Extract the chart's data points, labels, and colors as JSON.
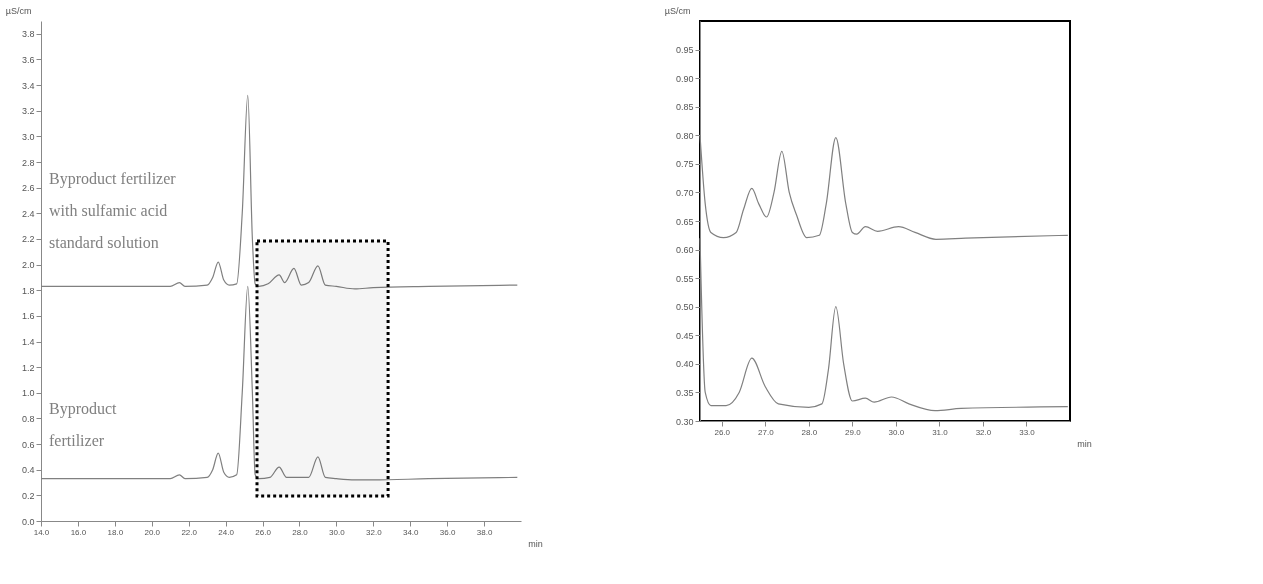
{
  "chart_data": [
    {
      "type": "line",
      "xlabel": "min",
      "ylabel": "µS/cm",
      "xlim": [
        14,
        40
      ],
      "ylim": [
        0,
        3.9
      ],
      "xticks": [
        {
          "value": 14,
          "label": "14.0"
        },
        {
          "value": 16,
          "label": "16.0"
        },
        {
          "value": 18,
          "label": "18.0"
        },
        {
          "value": 20,
          "label": "20.0"
        },
        {
          "value": 22,
          "label": "22.0"
        },
        {
          "value": 24,
          "label": "24.0"
        },
        {
          "value": 26,
          "label": "26.0"
        },
        {
          "value": 28,
          "label": "28.0"
        },
        {
          "value": 30,
          "label": "30.0"
        },
        {
          "value": 32,
          "label": "32.0"
        },
        {
          "value": 34,
          "label": "34.0"
        },
        {
          "value": 36,
          "label": "36.0"
        },
        {
          "value": 38,
          "label": "38.0"
        }
      ],
      "yticks": [
        {
          "value": 0,
          "label": "0.0"
        },
        0.2,
        0.4,
        0.6,
        0.8,
        {
          "value": 1,
          "label": "1.0"
        },
        1.2,
        1.4,
        1.6,
        1.8,
        {
          "value": 2,
          "label": "2.0"
        },
        2.2,
        2.4,
        2.6,
        2.8,
        {
          "value": 3,
          "label": "3.0"
        },
        3.2,
        3.4,
        3.6,
        3.8
      ],
      "grid": false,
      "legend": false,
      "marker": "none",
      "line_style": "solid",
      "bands": [
        {
          "axis": "x",
          "from": 25.7,
          "to": 32.8,
          "color": "#000000"
        }
      ],
      "series": [
        {
          "name": "Byproduct fertilizer with sulfamic acid standard solution",
          "color": "#808080",
          "x": [
            14,
            18,
            21,
            21.5,
            21.8,
            23.0,
            23.3,
            23.6,
            23.9,
            24.2,
            24.6,
            24.9,
            25.2,
            25.45,
            25.6,
            25.8,
            26.3,
            26.9,
            27.2,
            27.7,
            28.1,
            28.5,
            29.0,
            29.4,
            30.0,
            31.0,
            32.0,
            35,
            39.8
          ],
          "values": [
            1.83,
            1.83,
            1.83,
            1.86,
            1.83,
            1.84,
            1.9,
            2.02,
            1.88,
            1.84,
            1.85,
            2.4,
            3.32,
            2.2,
            1.85,
            1.83,
            1.85,
            1.92,
            1.86,
            1.97,
            1.84,
            1.86,
            1.99,
            1.84,
            1.83,
            1.81,
            1.82,
            1.83,
            1.84
          ]
        },
        {
          "name": "Byproduct fertilizer",
          "color": "#808080",
          "x": [
            14,
            18,
            21,
            21.5,
            21.8,
            23.0,
            23.3,
            23.6,
            23.9,
            24.2,
            24.6,
            24.9,
            25.2,
            25.45,
            25.6,
            25.8,
            26.4,
            26.9,
            27.3,
            28.5,
            29.0,
            29.4,
            30.0,
            31.0,
            32,
            35,
            39.8
          ],
          "values": [
            0.33,
            0.33,
            0.33,
            0.36,
            0.33,
            0.34,
            0.4,
            0.53,
            0.38,
            0.34,
            0.36,
            1.0,
            1.83,
            1.0,
            0.36,
            0.33,
            0.34,
            0.42,
            0.34,
            0.34,
            0.5,
            0.34,
            0.33,
            0.32,
            0.32,
            0.33,
            0.34
          ]
        }
      ]
    },
    {
      "type": "line",
      "xlabel": "min",
      "ylabel": "µS/cm",
      "xlim": [
        25.5,
        34.0
      ],
      "ylim": [
        0.3,
        1.0
      ],
      "xticks": [
        {
          "value": 26,
          "label": "26.0"
        },
        {
          "value": 27,
          "label": "27.0"
        },
        {
          "value": 28,
          "label": "28.0"
        },
        {
          "value": 29,
          "label": "29.0"
        },
        {
          "value": 30,
          "label": "30.0"
        },
        {
          "value": 31,
          "label": "31.0"
        },
        {
          "value": 32,
          "label": "32.0"
        },
        {
          "value": 33,
          "label": "33.0"
        }
      ],
      "yticks": [
        {
          "value": 0.3,
          "label": "0.30"
        },
        0.35,
        {
          "value": 0.4,
          "label": "0.40"
        },
        0.45,
        {
          "value": 0.5,
          "label": "0.50"
        },
        0.55,
        {
          "value": 0.6,
          "label": "0.60"
        },
        0.65,
        {
          "value": 0.7,
          "label": "0.70"
        },
        0.75,
        {
          "value": 0.8,
          "label": "0.80"
        },
        0.85,
        {
          "value": 0.9,
          "label": "0.90"
        },
        0.95
      ],
      "grid": false,
      "legend": false,
      "marker": "none",
      "line_style": "solid",
      "series": [
        {
          "color": "#808080",
          "x": [
            25.5,
            25.62,
            25.75,
            26.04,
            26.33,
            26.5,
            26.69,
            26.85,
            27.03,
            27.2,
            27.38,
            27.55,
            27.72,
            27.95,
            28.24,
            28.4,
            28.62,
            28.85,
            29.0,
            29.1,
            29.3,
            29.58,
            30.06,
            30.44,
            30.92,
            31.6,
            33.95
          ],
          "values": [
            0.8,
            0.68,
            0.63,
            0.621,
            0.63,
            0.67,
            0.707,
            0.68,
            0.657,
            0.7,
            0.772,
            0.7,
            0.66,
            0.621,
            0.625,
            0.68,
            0.796,
            0.68,
            0.63,
            0.627,
            0.64,
            0.632,
            0.64,
            0.63,
            0.618,
            0.62,
            0.625
          ]
        },
        {
          "color": "#808080",
          "x": [
            25.5,
            25.62,
            25.75,
            26.1,
            26.4,
            26.69,
            27.0,
            27.3,
            28.0,
            28.3,
            28.45,
            28.62,
            28.8,
            29.0,
            29.3,
            29.5,
            29.9,
            30.3,
            30.9,
            31.5,
            33.95
          ],
          "values": [
            0.62,
            0.35,
            0.327,
            0.327,
            0.35,
            0.41,
            0.36,
            0.33,
            0.324,
            0.33,
            0.39,
            0.5,
            0.4,
            0.335,
            0.34,
            0.333,
            0.342,
            0.33,
            0.318,
            0.322,
            0.325
          ]
        }
      ]
    }
  ]
}
